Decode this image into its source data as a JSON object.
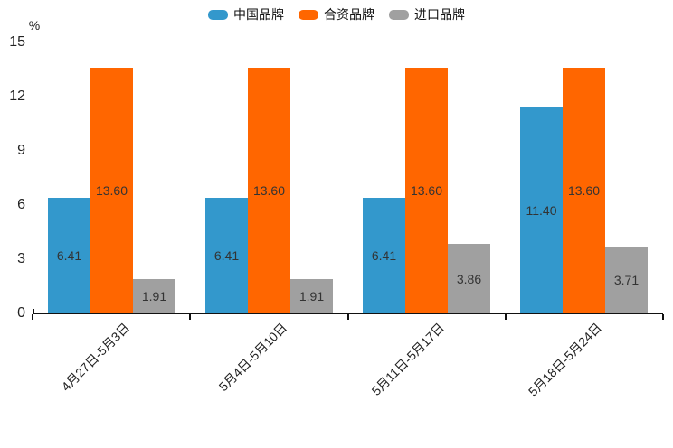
{
  "legend": {
    "position": "top",
    "items": [
      "中国品牌",
      "合资品牌",
      "进口品牌"
    ]
  },
  "axis": {
    "unit_label": "%"
  },
  "colors": {
    "china_brand_blue": "#3398cc",
    "joint_venture_orange": "#ff6600",
    "import_gray": "#a0a0a0",
    "axis_line": "#111111",
    "data_label": "#333333",
    "tick_text": "#222222"
  },
  "chart_data": {
    "type": "bar",
    "title": "",
    "xlabel": "",
    "ylabel": "%",
    "ylim": [
      0,
      15
    ],
    "yticks": [
      0,
      3,
      6,
      9,
      12,
      15
    ],
    "grid": false,
    "legend_position": "top",
    "categories": [
      "4月27日-5月3日",
      "5月4日-5月10日",
      "5月11日-5月17日",
      "5月18日-5月24日"
    ],
    "series": [
      {
        "name": "中国品牌",
        "color": "#3398cc",
        "values": [
          6.41,
          6.41,
          6.41,
          11.4
        ]
      },
      {
        "name": "合资品牌",
        "color": "#ff6600",
        "values": [
          13.6,
          13.6,
          13.6,
          13.6
        ]
      },
      {
        "name": "进口品牌",
        "color": "#a0a0a0",
        "values": [
          1.91,
          1.91,
          3.86,
          3.71
        ]
      }
    ],
    "value_label_decimals": 2
  }
}
